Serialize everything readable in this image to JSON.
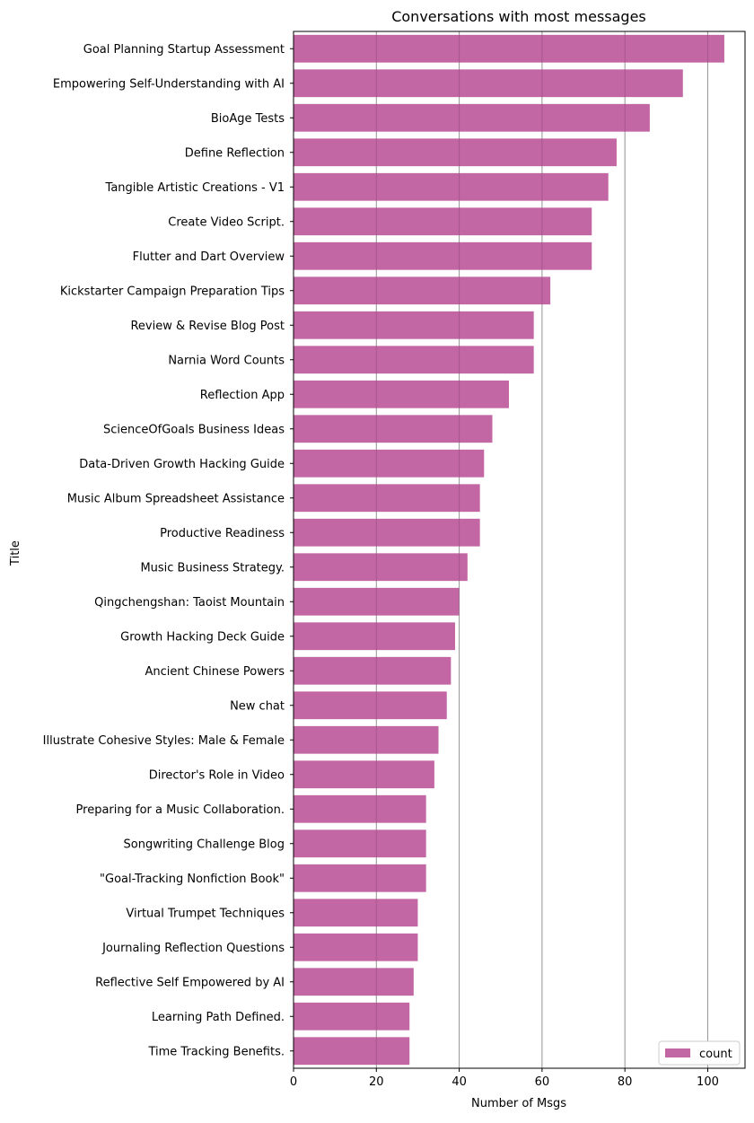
{
  "chart_data": {
    "type": "bar",
    "orientation": "horizontal",
    "title": "Conversations with most messages",
    "xlabel": "Number of Msgs",
    "ylabel": "Title",
    "xlim": [
      0,
      109
    ],
    "xticks": [
      0,
      20,
      40,
      60,
      80,
      100
    ],
    "grid": "vertical",
    "legend_position": "bottom-right",
    "bar_color": "#c366a4",
    "grid_color": "#b0b0b0",
    "categories": [
      "Goal Planning Startup Assessment",
      "Empowering Self-Understanding with AI",
      "BioAge Tests",
      "Define Reflection",
      "Tangible Artistic Creations - V1",
      "Create Video Script.",
      "Flutter and Dart Overview",
      "Kickstarter Campaign Preparation Tips",
      "Review & Revise Blog Post",
      "Narnia Word Counts",
      "Reflection App",
      "ScienceOfGoals Business Ideas",
      "Data-Driven Growth Hacking Guide",
      "Music Album Spreadsheet Assistance",
      "Productive Readiness",
      "Music Business Strategy.",
      "Qingchengshan: Taoist Mountain",
      "Growth Hacking Deck Guide",
      "Ancient Chinese Powers",
      "New chat",
      "Illustrate Cohesive Styles: Male & Female",
      "Director's Role in Video",
      "Preparing for a Music Collaboration.",
      "Songwriting Challenge Blog",
      "\"Goal-Tracking Nonfiction Book\"",
      "Virtual Trumpet Techniques",
      "Journaling Reflection Questions",
      "Reflective Self Empowered by AI",
      "Learning Path Defined.",
      "Time Tracking Benefits."
    ],
    "series": [
      {
        "name": "count",
        "values": [
          104,
          94,
          86,
          78,
          76,
          72,
          72,
          62,
          58,
          58,
          52,
          48,
          46,
          45,
          45,
          42,
          40,
          39,
          38,
          37,
          35,
          34,
          32,
          32,
          32,
          30,
          30,
          29,
          28,
          28
        ]
      }
    ]
  }
}
